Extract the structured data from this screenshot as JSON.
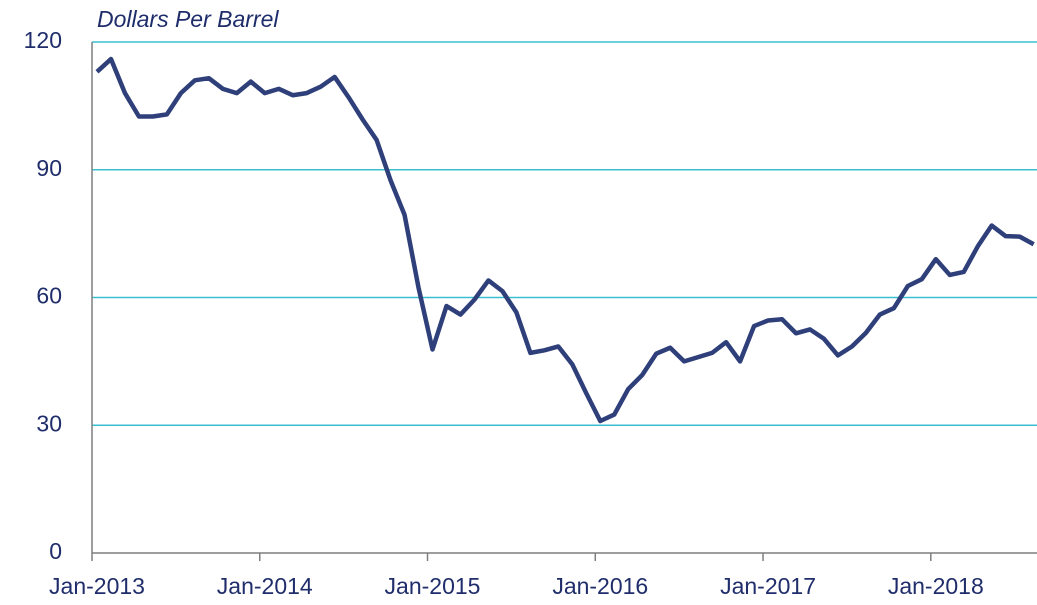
{
  "chart_data": {
    "type": "line",
    "title": "Dollars Per Barrel",
    "categories": [
      "Jan-2013",
      null,
      null,
      null,
      null,
      null,
      null,
      null,
      null,
      null,
      null,
      null,
      "Jan-2014",
      null,
      null,
      null,
      null,
      null,
      null,
      null,
      null,
      null,
      null,
      null,
      "Jan-2015",
      null,
      null,
      null,
      null,
      null,
      null,
      null,
      null,
      null,
      null,
      null,
      "Jan-2016",
      null,
      null,
      null,
      null,
      null,
      null,
      null,
      null,
      null,
      null,
      null,
      "Jan-2017",
      null,
      null,
      null,
      null,
      null,
      null,
      null,
      null,
      null,
      null,
      null,
      "Jan-2018",
      null,
      null,
      null,
      null,
      null,
      null,
      null
    ],
    "series": [
      {
        "color": "#2e3f7a",
        "values": [
          113,
          116,
          108,
          102.5,
          102.5,
          103,
          108,
          111,
          111.5,
          109,
          108,
          110.7,
          108,
          109,
          107.5,
          108,
          109.5,
          111.8,
          107,
          101.8,
          97,
          87.5,
          79.4,
          62.3,
          47.8,
          58,
          56,
          59.5,
          64,
          61.5,
          56.5,
          47,
          47.6,
          48.5,
          44.3,
          37.5,
          31,
          32.5,
          38.5,
          41.8,
          46.8,
          48.2,
          45,
          46,
          47,
          49.5,
          45,
          53.3,
          54.6,
          54.9,
          51.6,
          52.5,
          50.3,
          46.4,
          48.5,
          51.7,
          56,
          57.5,
          62.7,
          64.3,
          69,
          65.3,
          66,
          72,
          76.9,
          74.4,
          74.3,
          72.5
        ]
      }
    ],
    "ylim": [
      0,
      120
    ],
    "yticks": [
      0,
      30,
      60,
      90,
      120
    ],
    "grid": true,
    "grid_color": "#3bbfd0"
  }
}
